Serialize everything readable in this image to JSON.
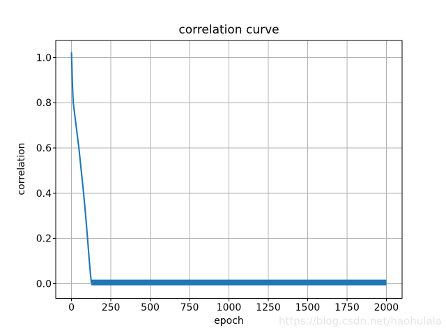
{
  "figure": {
    "title": "correlation curve",
    "xlabel": "epoch",
    "ylabel": "correlation",
    "watermark": "https://blog.csdn.net/haohulala"
  },
  "colors": {
    "line": "#1f77b4",
    "grid": "#b0b0b0",
    "spine": "#000000",
    "tick_text": "#000000",
    "background": "#ffffff",
    "watermark": "#e6e6e6"
  },
  "chart_data": {
    "type": "line",
    "title": "correlation curve",
    "xlabel": "epoch",
    "ylabel": "correlation",
    "grid": true,
    "legend": false,
    "xlim": [
      -100,
      2100
    ],
    "ylim": [
      -0.065,
      1.075
    ],
    "xtick_values": [
      0,
      250,
      500,
      750,
      1000,
      1250,
      1500,
      1750,
      2000
    ],
    "xtick_labels": [
      "0",
      "250",
      "500",
      "750",
      "1000",
      "1250",
      "1500",
      "1750",
      "2000"
    ],
    "ytick_values": [
      0.0,
      0.2,
      0.4,
      0.6,
      0.8,
      1.0
    ],
    "ytick_labels": [
      "0.0",
      "0.2",
      "0.4",
      "0.6",
      "0.8",
      "1.0"
    ],
    "series": [
      {
        "name": "correlation",
        "color": "#1f77b4",
        "descent_points": [
          [
            0,
            1.02
          ],
          [
            6,
            0.88
          ],
          [
            11,
            0.8
          ],
          [
            29,
            0.7
          ],
          [
            47,
            0.6
          ],
          [
            62,
            0.5
          ],
          [
            77,
            0.4
          ],
          [
            90,
            0.3
          ],
          [
            102,
            0.2
          ],
          [
            112,
            0.11
          ],
          [
            120,
            0.045
          ],
          [
            126,
            0.005
          ]
        ],
        "flat_segment": {
          "x_start": 126,
          "x_end": 2000,
          "value": 0.005,
          "noise_half_band": 0.013
        }
      }
    ]
  }
}
